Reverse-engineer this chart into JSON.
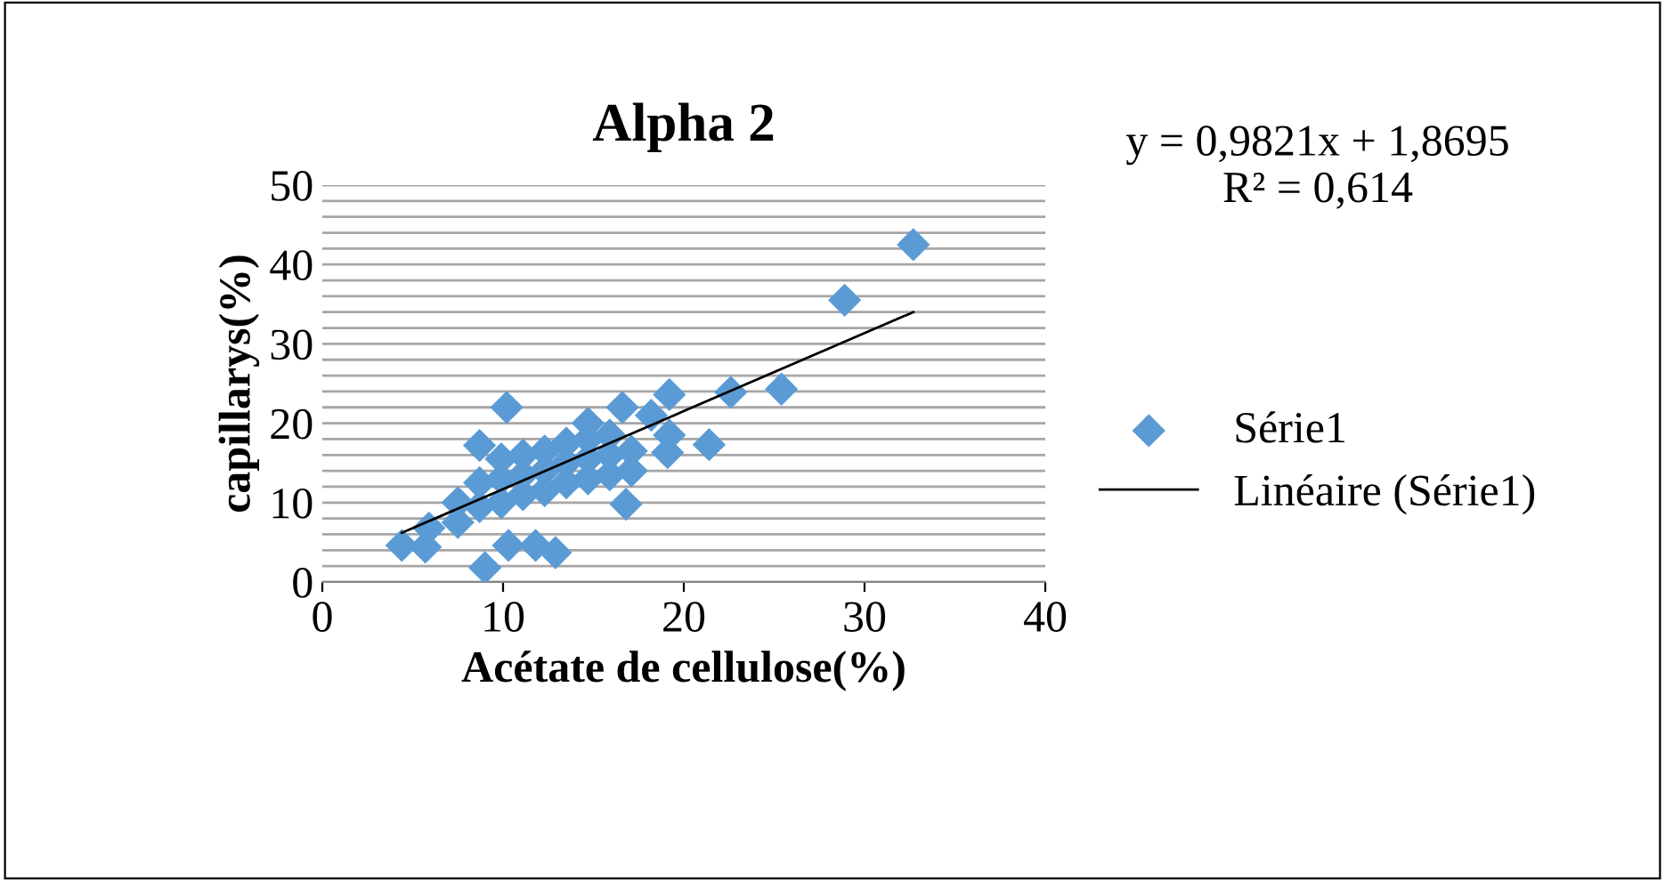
{
  "chart_data": {
    "type": "scatter",
    "title": "Alpha 2",
    "xlabel": "Acétate de cellulose(%)",
    "ylabel": "capillarys(%)",
    "annotations": [
      "y = 0,9821x + 1,8695\nR² = 0,614"
    ],
    "xlim": [
      0,
      40
    ],
    "xticks": [
      0,
      10,
      20,
      30,
      40
    ],
    "ylim": [
      0,
      50
    ],
    "yticks": [
      0,
      {
        "value": 2,
        "label": null
      },
      {
        "value": 4,
        "label": null
      },
      {
        "value": 6,
        "label": null
      },
      {
        "value": 8,
        "label": null
      },
      10,
      {
        "value": 12,
        "label": null
      },
      {
        "value": 14,
        "label": null
      },
      {
        "value": 16,
        "label": null
      },
      {
        "value": 18,
        "label": null
      },
      20,
      {
        "value": 22,
        "label": null
      },
      {
        "value": 24,
        "label": null
      },
      {
        "value": 26,
        "label": null
      },
      {
        "value": 28,
        "label": null
      },
      30,
      {
        "value": 32,
        "label": null
      },
      {
        "value": 34,
        "label": null
      },
      {
        "value": 36,
        "label": null
      },
      {
        "value": 38,
        "label": null
      },
      40,
      {
        "value": 42,
        "label": null
      },
      {
        "value": 44,
        "label": null
      },
      {
        "value": 46,
        "label": null
      },
      {
        "value": 48,
        "label": null
      },
      50
    ],
    "grid": "y",
    "legend": "right",
    "marker": "diamond",
    "series": [
      {
        "name": "Série1",
        "color": "#5b9bd5",
        "x": [
          32.7,
          28.9,
          25.4,
          22.6,
          21.4,
          19.2,
          19.1,
          19.2,
          18.2,
          10.2,
          9.0,
          4.4,
          5.7,
          5.9,
          10.3,
          11.8,
          12.9,
          16.8,
          16.6,
          7.5,
          7.5,
          8.7,
          8.7,
          8.7,
          9.9,
          9.9,
          9.9,
          11.1,
          11.1,
          11.1,
          12.3,
          12.3,
          12.3,
          13.5,
          13.5,
          13.5,
          14.7,
          14.7,
          14.7,
          14.7,
          15.9,
          15.9,
          15.9,
          17.1,
          17.1
        ],
        "values": [
          42.5,
          35.5,
          24.3,
          23.9,
          17.3,
          23.6,
          16.3,
          18.5,
          21.0,
          22.0,
          1.8,
          4.6,
          4.4,
          6.8,
          4.6,
          4.6,
          3.7,
          9.8,
          22.0,
          7.5,
          10.0,
          9.5,
          12.5,
          17.2,
          10.0,
          13.0,
          15.5,
          11.0,
          13.5,
          16.0,
          11.5,
          14.0,
          16.5,
          12.5,
          15.0,
          17.5,
          13.0,
          15.5,
          18.0,
          20.0,
          13.5,
          16.0,
          18.5,
          14.0,
          16.5
        ]
      },
      {
        "name": "Linéaire (Série1)",
        "type": "line",
        "color": "#000000",
        "x": [
          4.4,
          32.7
        ],
        "values": [
          6.2,
          34.0
        ],
        "marker": "none"
      }
    ]
  }
}
